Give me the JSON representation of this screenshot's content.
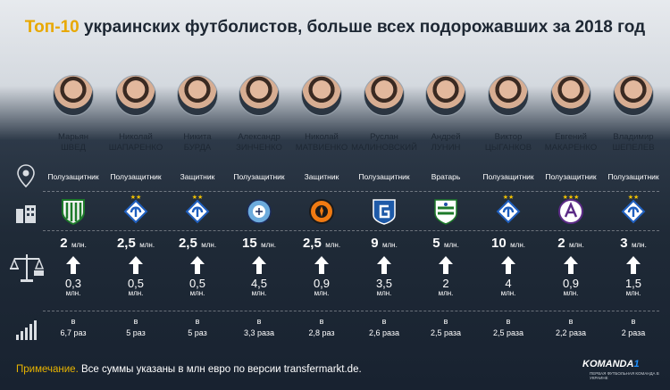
{
  "header": {
    "title_highlight": "Топ-10",
    "title_rest": " украинских футболистов, больше всех подорожавших за 2018 год"
  },
  "players": [
    {
      "first": "Марьян",
      "last": "ШВЕД",
      "position": "Полузащитник",
      "club_icon": "karpaty-badge",
      "new_value": "2",
      "new_unit": "млн.",
      "old_value": "0,3",
      "old_unit": "млн.",
      "multiplier_prefix": "в",
      "multiplier": "6,7 раз"
    },
    {
      "first": "Николай",
      "last": "ШАПАРЕНКО",
      "position": "Полузащитник",
      "club_icon": "dynamo-badge",
      "stars": "★★",
      "new_value": "2,5",
      "new_unit": "млн.",
      "old_value": "0,5",
      "old_unit": "млн.",
      "multiplier_prefix": "в",
      "multiplier": "5 раз"
    },
    {
      "first": "Никита",
      "last": "БУРДА",
      "position": "Защитник",
      "club_icon": "dynamo-badge",
      "stars": "★★",
      "new_value": "2,5",
      "new_unit": "млн.",
      "old_value": "0,5",
      "old_unit": "млн.",
      "multiplier_prefix": "в",
      "multiplier": "5 раз"
    },
    {
      "first": "Александр",
      "last": "ЗИНЧЕНКО",
      "position": "Полузащитник",
      "club_icon": "man-city-badge",
      "new_value": "15",
      "new_unit": "млн.",
      "old_value": "4,5",
      "old_unit": "млн.",
      "multiplier_prefix": "в",
      "multiplier": "3,3 раза"
    },
    {
      "first": "Николай",
      "last": "МАТВИЕНКО",
      "position": "Защитник",
      "club_icon": "shakhtar-badge",
      "new_value": "2,5",
      "new_unit": "млн.",
      "old_value": "0,9",
      "old_unit": "млн.",
      "multiplier_prefix": "в",
      "multiplier": "2,8 раз"
    },
    {
      "first": "Руслан",
      "last": "МАЛИНОВСКИЙ",
      "position": "Полузащитник",
      "club_icon": "genk-badge",
      "new_value": "9",
      "new_unit": "млн.",
      "old_value": "3,5",
      "old_unit": "млн.",
      "multiplier_prefix": "в",
      "multiplier": "2,6 раза"
    },
    {
      "first": "Андрей",
      "last": "ЛУНИН",
      "position": "Вратарь",
      "club_icon": "leganes-badge",
      "new_value": "5",
      "new_unit": "млн.",
      "old_value": "2",
      "old_unit": "млн.",
      "multiplier_prefix": "в",
      "multiplier": "2,5 раза"
    },
    {
      "first": "Виктор",
      "last": "ЦЫГАНКОВ",
      "position": "Полузащитник",
      "club_icon": "dynamo-badge",
      "stars": "★★",
      "new_value": "10",
      "new_unit": "млн.",
      "old_value": "4",
      "old_unit": "млн.",
      "multiplier_prefix": "в",
      "multiplier": "2,5 раза"
    },
    {
      "first": "Евгений",
      "last": "МАКАРЕНКО",
      "position": "Полузащитник",
      "club_icon": "anderlecht-badge",
      "stars": "★★★",
      "new_value": "2",
      "new_unit": "млн.",
      "old_value": "0,9",
      "old_unit": "млн.",
      "multiplier_prefix": "в",
      "multiplier": "2,2 раза"
    },
    {
      "first": "Владимир",
      "last": "ШЕПЕЛЕВ",
      "position": "Полузащитник",
      "club_icon": "dynamo-badge",
      "stars": "★★",
      "new_value": "3",
      "new_unit": "млн.",
      "old_value": "1,5",
      "old_unit": "млн.",
      "multiplier_prefix": "в",
      "multiplier": "2 раза"
    }
  ],
  "row_icons": [
    "location-pin-icon",
    "club-building-icon",
    "scales-money-icon",
    "growth-bars-icon"
  ],
  "footer": {
    "note_label": "Примечание.",
    "note_text": " Все суммы указаны в млн евро по версии transfermarkt.de.",
    "brand_main": "KOMANDA",
    "brand_one": "1",
    "brand_tagline": "ПЕРВАЯ ФУТБОЛЬНАЯ КОМАНДА В УКРАИНЕ"
  },
  "colors": {
    "accent": "#e8a800",
    "dark_bg": "#1f2a37",
    "arrow": "#ffffff"
  }
}
